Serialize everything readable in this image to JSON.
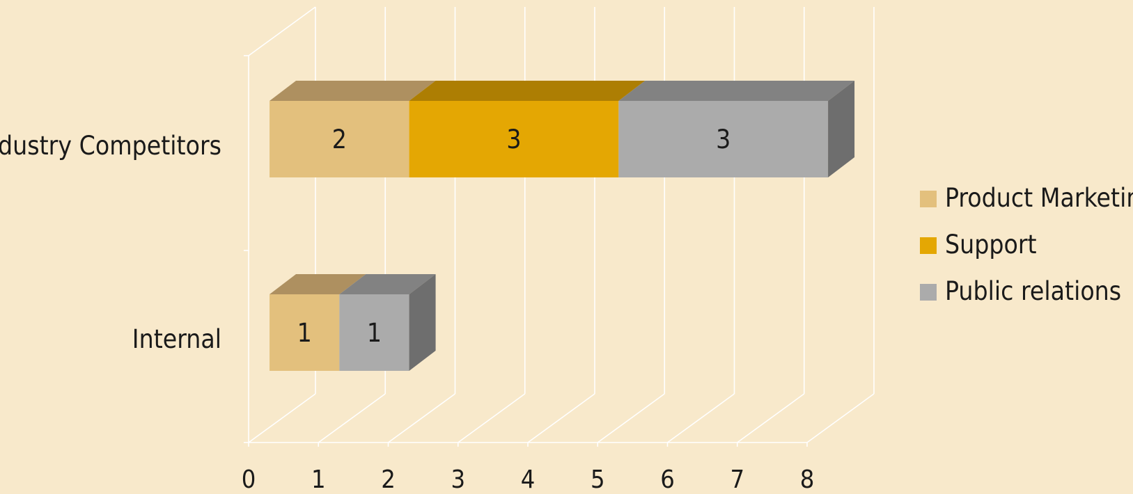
{
  "chart_data": {
    "type": "bar",
    "orientation": "horizontal",
    "stacked": true,
    "three_d": true,
    "categories": [
      "Industry Competitors",
      "Internal"
    ],
    "series": [
      {
        "name": "Product Marketing",
        "values": [
          2,
          1
        ],
        "color": "#E3C07D",
        "top_color": "#AE9060"
      },
      {
        "name": "Support",
        "values": [
          3,
          0
        ],
        "color": "#E4A703",
        "top_color": "#AD7E03"
      },
      {
        "name": "Public relations",
        "values": [
          3,
          1
        ],
        "color": "#ABABAB",
        "top_color": "#828282"
      }
    ],
    "xticks": [
      "0",
      "1",
      "2",
      "3",
      "4",
      "5",
      "6",
      "7",
      "8"
    ],
    "xlim": [
      0,
      8
    ],
    "grid": true,
    "legend_position": "right",
    "data_labels": true,
    "background_color": "#F8E9CB",
    "side_color": "#6E6E6E"
  }
}
